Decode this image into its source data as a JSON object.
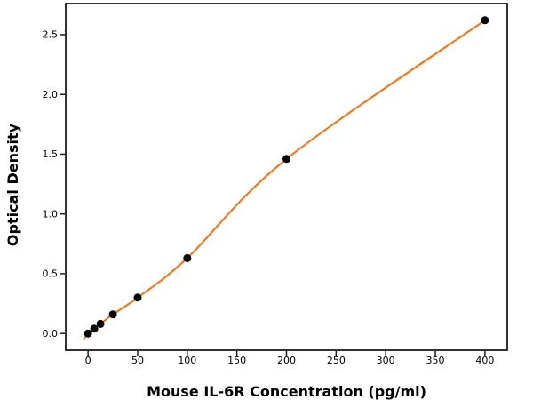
{
  "figure": {
    "background": "#ffffff"
  },
  "chart_data": {
    "type": "scatter",
    "title": "",
    "xlabel": "Mouse IL-6R Concentration (pg/ml)",
    "ylabel": "Optical Density",
    "x": [
      0,
      6.25,
      12.5,
      25,
      50,
      100,
      200,
      400
    ],
    "y": [
      0.0,
      0.04,
      0.08,
      0.16,
      0.3,
      0.63,
      1.46,
      2.62
    ],
    "fit_curve_anchors": [
      [
        -4,
        -0.045
      ],
      [
        0,
        0.0
      ],
      [
        6.25,
        0.04
      ],
      [
        12.5,
        0.08
      ],
      [
        25,
        0.16
      ],
      [
        50,
        0.3
      ],
      [
        100,
        0.63
      ],
      [
        200,
        1.46
      ],
      [
        400,
        2.62
      ]
    ],
    "xticks": [
      {
        "label": "0",
        "value": 0
      },
      {
        "label": "50",
        "value": 50
      },
      {
        "label": "100",
        "value": 100
      },
      {
        "label": "150",
        "value": 150
      },
      {
        "label": "200",
        "value": 200
      },
      {
        "label": "250",
        "value": 250
      },
      {
        "label": "300",
        "value": 300
      },
      {
        "label": "350",
        "value": 350
      },
      {
        "label": "400",
        "value": 400
      }
    ],
    "yticks": [
      {
        "label": "0.0",
        "value": 0
      },
      {
        "label": "0.5",
        "value": 0.5
      },
      {
        "label": "1.0",
        "value": 1
      },
      {
        "label": "1.5",
        "value": 1.5
      },
      {
        "label": "2.0",
        "value": 2
      },
      {
        "label": "2.5",
        "value": 2.5
      }
    ],
    "xlim": [
      -22.5,
      422.5
    ],
    "ylim": [
      -0.14,
      2.76
    ],
    "grid": false,
    "legend": null,
    "marker_color": "#000000",
    "curve_color": "#ff6e0c",
    "spine_color": "#1c1c1c"
  }
}
